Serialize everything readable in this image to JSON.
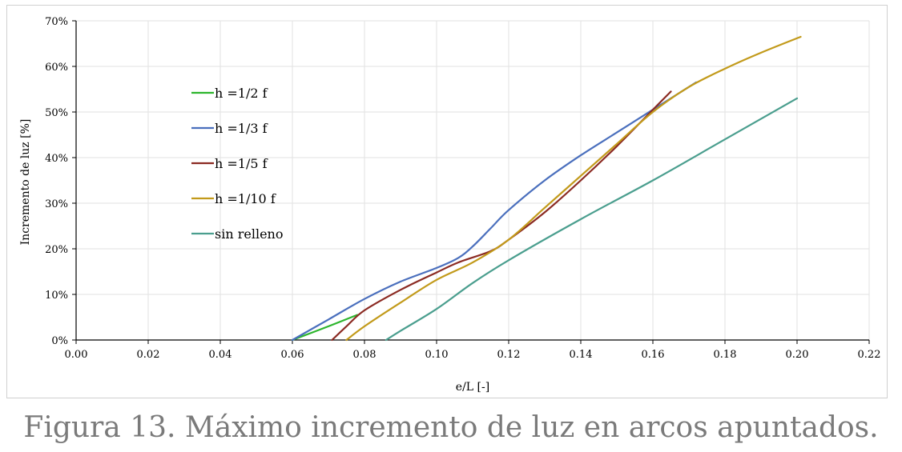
{
  "caption": "Figura 13. Máximo incremento de luz en arcos apuntados.",
  "chart_data": {
    "type": "line",
    "title": "",
    "xlabel": "e/L [-]",
    "ylabel": "Incremento de luz [%]",
    "xlim": [
      0,
      0.22
    ],
    "ylim": [
      0,
      70
    ],
    "x_ticks": [
      "0.00",
      "0.02",
      "0.04",
      "0.06",
      "0.08",
      "0.10",
      "0.12",
      "0.14",
      "0.16",
      "0.18",
      "0.20",
      "0.22"
    ],
    "y_ticks": [
      "0%",
      "10%",
      "20%",
      "30%",
      "40%",
      "50%",
      "60%",
      "70%"
    ],
    "grid": true,
    "legend_position": "left",
    "series": [
      {
        "name": "h =1/2 f",
        "color": "#2db52d",
        "x": [
          0.06,
          0.07,
          0.078
        ],
        "y": [
          0,
          3,
          5.5
        ]
      },
      {
        "name": "h =1/3 f",
        "color": "#4a6fbd",
        "x": [
          0.06,
          0.07,
          0.08,
          0.09,
          0.1,
          0.106,
          0.11,
          0.115,
          0.12,
          0.13,
          0.14,
          0.15,
          0.16,
          0.172
        ],
        "y": [
          0,
          4.5,
          9,
          12.8,
          15.8,
          18,
          20.5,
          24.5,
          28.5,
          35,
          40.5,
          45.5,
          50.5,
          56.5
        ]
      },
      {
        "name": "h =1/5 f",
        "color": "#8b2a22",
        "x": [
          0.071,
          0.075,
          0.08,
          0.09,
          0.1,
          0.106,
          0.115,
          0.12,
          0.13,
          0.14,
          0.15,
          0.16,
          0.165
        ],
        "y": [
          0,
          3,
          6.5,
          11,
          14.8,
          17,
          19.5,
          22,
          28,
          35,
          42.5,
          50.5,
          54.5
        ]
      },
      {
        "name": "h =1/10 f",
        "color": "#c29a1a",
        "x": [
          0.075,
          0.08,
          0.09,
          0.1,
          0.11,
          0.12,
          0.13,
          0.14,
          0.15,
          0.16,
          0.17,
          0.18,
          0.19,
          0.201
        ],
        "y": [
          0,
          3,
          8.2,
          13.2,
          17,
          22,
          29,
          36,
          43,
          50,
          55.5,
          59.5,
          63,
          66.5
        ]
      },
      {
        "name": "sin relleno",
        "color": "#4a9e8e",
        "x": [
          0.086,
          0.09,
          0.1,
          0.11,
          0.12,
          0.14,
          0.16,
          0.18,
          0.2
        ],
        "y": [
          0,
          2,
          6.8,
          12.5,
          17.5,
          26.5,
          35,
          44,
          53
        ]
      }
    ]
  }
}
